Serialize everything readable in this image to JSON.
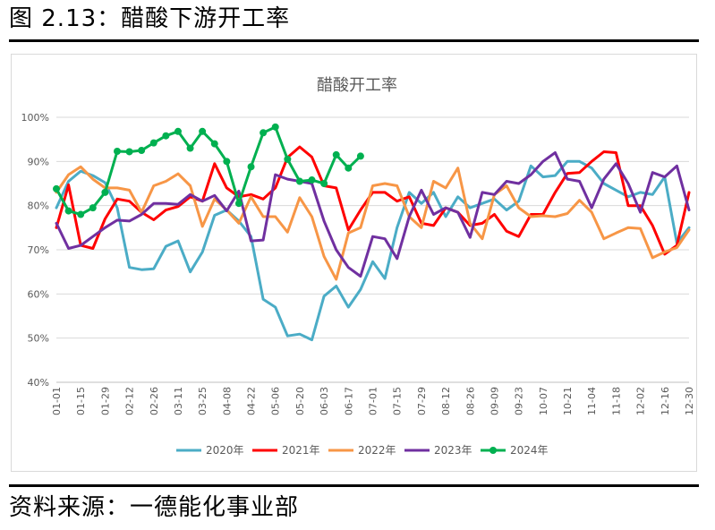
{
  "figure": {
    "title": "图 2.13：醋酸下游开工率",
    "source": "资料来源：一德能化事业部"
  },
  "chart_data": {
    "type": "line",
    "title": "醋酸开工率",
    "xlabel": "",
    "ylabel": "",
    "ylim": [
      40,
      100
    ],
    "y_ticks": [
      "40%",
      "50%",
      "60%",
      "70%",
      "80%",
      "90%",
      "100%"
    ],
    "grid": true,
    "legend": "bottom",
    "categories": [
      "01-01",
      "01-08",
      "01-15",
      "01-22",
      "01-29",
      "02-05",
      "02-12",
      "02-19",
      "02-26",
      "03-04",
      "03-11",
      "03-18",
      "03-25",
      "04-01",
      "04-08",
      "04-15",
      "04-22",
      "04-29",
      "05-06",
      "05-13",
      "05-20",
      "05-27",
      "06-03",
      "06-10",
      "06-17",
      "06-24",
      "07-01",
      "07-08",
      "07-15",
      "07-22",
      "07-29",
      "08-05",
      "08-12",
      "08-19",
      "08-26",
      "09-02",
      "09-09",
      "09-16",
      "09-23",
      "09-30",
      "10-07",
      "10-14",
      "10-21",
      "10-28",
      "11-04",
      "11-11",
      "11-18",
      "11-25",
      "12-02",
      "12-09",
      "12-16",
      "12-23",
      "12-30"
    ],
    "series": [
      {
        "name": "2020年",
        "color": "#4bacc6",
        "marker": false,
        "values": [
          79.5,
          85.5,
          87.8,
          86.8,
          85.2,
          79.5,
          66.0,
          65.5,
          65.7,
          70.8,
          72.0,
          65.0,
          69.5,
          77.8,
          79.0,
          76.5,
          73.0,
          58.8,
          57.0,
          50.5,
          50.9,
          49.6,
          59.5,
          61.8,
          57.0,
          61.0,
          67.3,
          63.5,
          75.0,
          83.0,
          80.5,
          83.0,
          77.5,
          82.0,
          79.5,
          80.5,
          81.5,
          79.0,
          81.0,
          89.0,
          86.5,
          86.8,
          90.0,
          90.0,
          88.5,
          85.0,
          83.5,
          82.0,
          83.0,
          82.5,
          86.5,
          71.5,
          75.0
        ]
      },
      {
        "name": "2021年",
        "color": "#ff0000",
        "marker": false,
        "values": [
          75.0,
          84.7,
          71.0,
          70.3,
          77.0,
          81.5,
          81.0,
          78.5,
          76.8,
          79.0,
          79.8,
          82.0,
          81.0,
          89.5,
          84.0,
          82.0,
          82.5,
          81.5,
          84.0,
          90.9,
          93.3,
          91.0,
          84.5,
          84.0,
          74.5,
          79.0,
          83.0,
          83.0,
          81.0,
          82.0,
          76.0,
          75.5,
          79.5,
          78.5,
          75.5,
          76.0,
          78.0,
          74.2,
          73.0,
          78.0,
          78.0,
          83.0,
          87.3,
          87.5,
          90.0,
          92.2,
          92.0,
          80.0,
          80.0,
          75.5,
          69.0,
          71.0,
          83.0
        ]
      },
      {
        "name": "2022年",
        "color": "#f79646",
        "marker": false,
        "values": [
          83.0,
          87.0,
          88.8,
          86.0,
          84.0,
          84.0,
          83.5,
          78.5,
          84.5,
          85.5,
          87.2,
          84.5,
          75.3,
          81.5,
          79.0,
          76.0,
          82.0,
          77.5,
          77.5,
          74.0,
          81.8,
          77.5,
          68.5,
          63.3,
          73.8,
          75.0,
          84.5,
          85.0,
          84.5,
          77.5,
          75.0,
          85.5,
          84.0,
          88.5,
          76.0,
          72.5,
          82.5,
          84.5,
          79.5,
          77.5,
          77.7,
          77.5,
          78.2,
          81.2,
          78.5,
          72.5,
          73.8,
          75.0,
          74.8,
          68.2,
          69.5,
          70.5,
          74.5
        ]
      },
      {
        "name": "2023年",
        "color": "#7030a0",
        "marker": false,
        "values": [
          76.0,
          70.3,
          71.0,
          73.0,
          75.0,
          76.7,
          76.5,
          78.0,
          80.5,
          80.5,
          80.3,
          82.5,
          81.0,
          82.3,
          78.8,
          83.3,
          72.0,
          72.2,
          87.0,
          86.0,
          85.5,
          85.0,
          76.5,
          70.0,
          66.0,
          64.0,
          73.0,
          72.5,
          68.0,
          77.5,
          83.5,
          78.0,
          79.5,
          78.5,
          72.8,
          83.0,
          82.5,
          85.5,
          85.0,
          87.0,
          90.0,
          92.0,
          86.0,
          85.5,
          79.5,
          86.0,
          89.5,
          85.0,
          78.5,
          87.5,
          86.5,
          89.0,
          79.0
        ]
      },
      {
        "name": "2024年",
        "color": "#00b050",
        "marker": true,
        "values": [
          83.8,
          78.8,
          78.0,
          79.5,
          83.0,
          92.3,
          92.2,
          92.5,
          94.2,
          95.8,
          96.8,
          93.0,
          96.8,
          94.0,
          90.0,
          80.5,
          88.8,
          96.5,
          97.8,
          90.5,
          85.5,
          85.8,
          85.0,
          91.5,
          88.5,
          91.2,
          null,
          null,
          null,
          null,
          null,
          null,
          null,
          null,
          null,
          null,
          null,
          null,
          null,
          null,
          null,
          null,
          null,
          null,
          null,
          null,
          null,
          null,
          null,
          null,
          null,
          null,
          null
        ]
      }
    ]
  }
}
